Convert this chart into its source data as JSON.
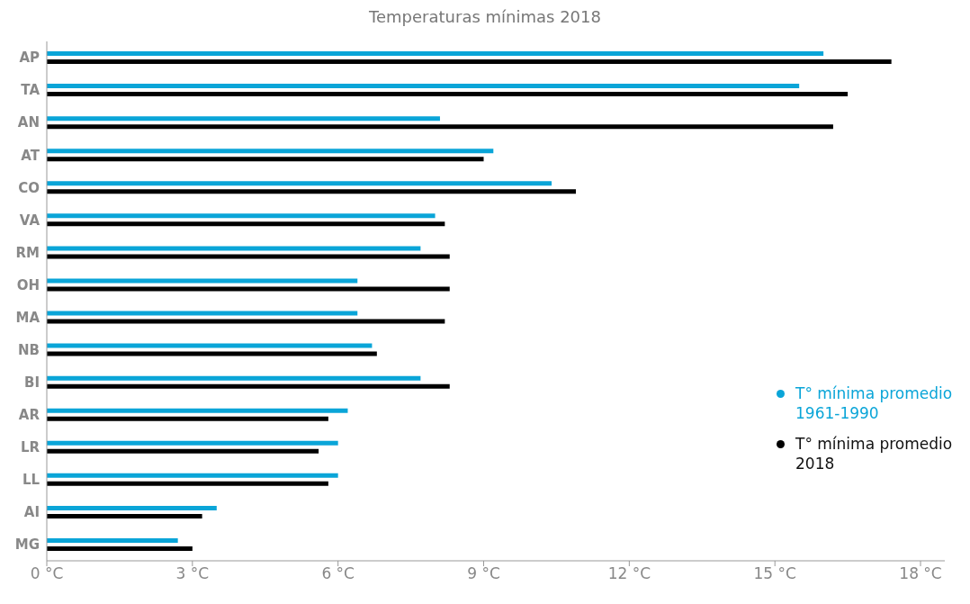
{
  "chart_data": {
    "type": "bar",
    "orientation": "horizontal",
    "title": "Temperaturas mínimas 2018",
    "categories": [
      "AP",
      "TA",
      "AN",
      "AT",
      "CO",
      "VA",
      "RM",
      "OH",
      "MA",
      "NB",
      "BI",
      "AR",
      "LR",
      "LL",
      "AI",
      "MG"
    ],
    "series": [
      {
        "name": "T° mínima promedio 1961-1990",
        "color": "#0aa5d8",
        "values": [
          16.0,
          15.5,
          8.1,
          9.2,
          10.4,
          8.0,
          7.7,
          6.4,
          6.4,
          6.7,
          7.7,
          6.2,
          6.0,
          6.0,
          3.5,
          2.7
        ]
      },
      {
        "name": "T° mínima promedio 2018",
        "color": "#000000",
        "values": [
          17.4,
          16.5,
          16.2,
          9.0,
          10.9,
          8.2,
          8.3,
          8.3,
          8.2,
          6.8,
          8.3,
          5.8,
          5.6,
          5.8,
          3.2,
          3.0
        ]
      }
    ],
    "xlim": [
      0,
      18.5
    ],
    "xticks": [
      {
        "value": 0,
        "label": "0 °C"
      },
      {
        "value": 3,
        "label": "3 °C"
      },
      {
        "value": 6,
        "label": "6 °C"
      },
      {
        "value": 9,
        "label": "9 °C"
      },
      {
        "value": 12,
        "label": "12 °C"
      },
      {
        "value": 15,
        "label": "15 °C"
      },
      {
        "value": 18,
        "label": "18 °C"
      }
    ],
    "grid": false,
    "legend": "right"
  }
}
